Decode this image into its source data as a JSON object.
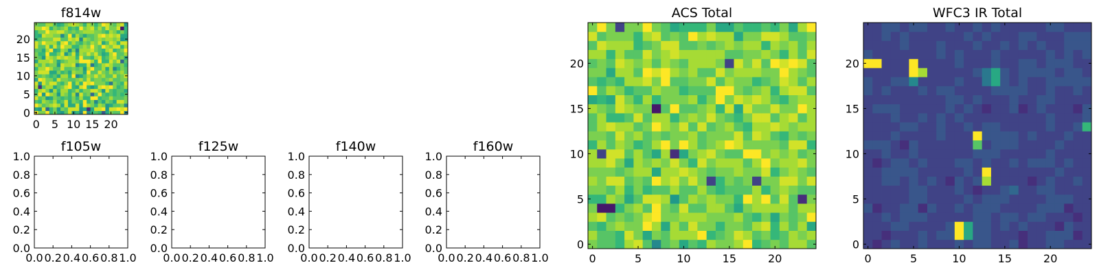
{
  "chart_data": [
    {
      "type": "heatmap",
      "title": "f814w",
      "xlabel": "",
      "ylabel": "",
      "xlim": [
        -0.5,
        24.5
      ],
      "ylim": [
        -0.5,
        24.5
      ],
      "x_ticks": [
        0,
        5,
        10,
        15,
        20
      ],
      "y_ticks": [
        0,
        5,
        10,
        15,
        20
      ],
      "grid_size": 25,
      "colormap": "viridis",
      "value_range": [
        0,
        1
      ],
      "grid": false,
      "values": [
        "PMMPKMJILOIKHPHKLKEJMLLPH",
        "JIOFKMIMLOOOIJCJOOPIOOPOP",
        "PNLMNONJOJJOJPNMKNMIJLLMH",
        "LKNMLNKLOJMLKPKMHLJMLJOOM",
        "OLMIJMLKLKMKNKKPPKLLNLLLM",
        "LPIPNMINMKNHOLMFLPLKLKLKL",
        "KNOMINKNNKLNKMMOOMIOLKLLJ",
        "NCLNNJLMOPKJOPKIKOPOPMKLN",
        "OIOMOOLKMPKNKPOPMMMKGMLKO",
        "JPOMMKOMMLLMNLOLMMLMNLLMM",
        "MLMLKLJNNKPHJLNMOMNLLOLMO",
        "MOOOJJMKLJNMMJPLLOMLNLMNL",
        "KNNPNLLOLLMLMINPLLNJNHKML",
        "NLNLMMIONNOHKKOGKLNONLLMK",
        "JNNNOMJLMNNMPPPNKPKKOMOFL",
        "MLIONMONONNKPLLKNOKLNOLMJ",
        "MKKPKKMOILOJNMOMOLJKNPLLN",
        "LLJNPJKNMIMHNNNOMLKNOKLMP",
        "OLLOKOLPNNKKMNMPMLPNMOOKN",
        "OMPNNNKOPLNLKMLNMOJLONKOO",
        "KLMMMOOLLONOHNMLMNMNNMNIJ",
        "KJONNMMHLPJNLJLLMOPNONOJJ",
        "KMMPNNOOMLMLMNNNMMLKNMKMK",
        "NNPOKMLMNKLKPMNOLNLOMMOBK",
        "MLLNNLJKMNONMKNMKMPOMLNOI"
      ]
    },
    {
      "type": "scatter",
      "title": "f105w",
      "xlabel": "",
      "ylabel": "",
      "xlim": [
        0,
        1
      ],
      "ylim": [
        0,
        1
      ],
      "x_ticks": [
        0.0,
        0.2,
        0.4,
        0.6,
        0.8,
        1.0
      ],
      "y_ticks": [
        0.0,
        0.2,
        0.4,
        0.6,
        0.8,
        1.0
      ],
      "series": []
    },
    {
      "type": "scatter",
      "title": "f125w",
      "xlabel": "",
      "ylabel": "",
      "xlim": [
        0,
        1
      ],
      "ylim": [
        0,
        1
      ],
      "x_ticks": [
        0.0,
        0.2,
        0.4,
        0.6,
        0.8,
        1.0
      ],
      "y_ticks": [
        0.0,
        0.2,
        0.4,
        0.6,
        0.8,
        1.0
      ],
      "series": []
    },
    {
      "type": "scatter",
      "title": "f140w",
      "xlabel": "",
      "ylabel": "",
      "xlim": [
        0,
        1
      ],
      "ylim": [
        0,
        1
      ],
      "x_ticks": [
        0.0,
        0.2,
        0.4,
        0.6,
        0.8,
        1.0
      ],
      "y_ticks": [
        0.0,
        0.2,
        0.4,
        0.6,
        0.8,
        1.0
      ],
      "series": []
    },
    {
      "type": "scatter",
      "title": "f160w",
      "xlabel": "",
      "ylabel": "",
      "xlim": [
        0,
        1
      ],
      "ylim": [
        0,
        1
      ],
      "x_ticks": [
        0.0,
        0.2,
        0.4,
        0.6,
        0.8,
        1.0
      ],
      "y_ticks": [
        0.0,
        0.2,
        0.4,
        0.6,
        0.8,
        1.0
      ],
      "series": []
    },
    {
      "type": "heatmap",
      "title": "ACS Total",
      "xlabel": "",
      "ylabel": "",
      "xlim": [
        -0.5,
        24.5
      ],
      "ylim": [
        -0.5,
        24.5
      ],
      "x_ticks": [
        0,
        5,
        10,
        15,
        20
      ],
      "y_ticks": [
        0,
        5,
        10,
        15,
        20
      ],
      "grid_size": 25,
      "colormap": "viridis",
      "value_range": [
        0,
        1
      ],
      "grid": false,
      "values": [
        "MLLKNOLHLMJLKNMMNPKLMLNNL",
        "NLLKOMJMLNNNPKLMONLMKLNMN",
        "LKMNMMPNJNLOMMKMMLNOKNLNJ",
        "NOLMLMOPMMNNNMMMNLKMJMLMP",
        "MBBKMNLPMLOLLNNLJMNNNNLNN",
        "KKNMJLOONILNMNMMKPNPLOLCM",
        "MMLNKMKLLNLLNLKLLLNKMNMLL",
        "NMOOLMLPNOMOMDKMLMDMMOOMO",
        "MMMLMNNJNNONMLMMNMMOKMNML",
        "NNOMJNMNMOMKOMNNNLNPMNNOM",
        "NDOOLNLJNCJMNOMLLPPMNMNLM",
        "KNLNMKLNPMPNLMNPOMMMMLOOK",
        "MMLOMNLMLMMNLMMMOLONLKMLM",
        "LNONNLMPNMOLOLMNLKNNONMNN",
        "LNKKLOLNNKMNMOMLKMOOLNOLN",
        "NMLONMMBLPLLMNKOJOMMOMMPN",
        "JKJOMKNKMMMNKMPMONONLKMNN",
        "PLNMKLLNMMKLLLPPMLMNKNOOL",
        "LKLKNNOMPLLMMOLNMMKLMONLN",
        "MMJNNLPOPNMNLLOMNNNMMPNML",
        "LMLONMNLNMLNNNMDOMOLPOPOL",
        "NNKNLLOMNONNNNNLLMMNMKNLO",
        "LONNNKLMOOLLMLMNMNNKNMNLN",
        "OLMMMKNOLMLPNONNJMMOONLLM",
        "MPMDMMPMLJKKKMJJLKKLKMJNP"
      ]
    },
    {
      "type": "heatmap",
      "title": "WFC3 IR Total",
      "xlabel": "",
      "ylabel": "",
      "xlim": [
        -0.5,
        24.5
      ],
      "ylim": [
        -0.5,
        24.5
      ],
      "x_ticks": [
        0,
        5,
        10,
        15,
        20
      ],
      "y_ticks": [
        0,
        5,
        10,
        15,
        20
      ],
      "grid_size": 25,
      "colormap": "viridis",
      "value_range": [
        0,
        1
      ],
      "grid": false,
      "values": [
        "DCDEDDEDDDEDEEDDECDDEEDDD",
        "DDCDDDEDEEPJEEDDDCDDEEECD",
        "DDDEEDDDDEPJEEDEDEDDDCEDD",
        "DDEDEEEDDDDDEEDEEDEEDDDCD",
        "ECDDEECEDDEDEEEDDDDEEECDD",
        "DDDDDEEDDDDEDEEEDDDDEEEDD",
        "DDDDDEEDDDEDCDDEFDDEEDDDD",
        "DDEEDEDEDCEDENDDDDCDEDDED",
        "DDEEEEDDDDDEDPDDDDDDDEDDD",
        "DCDEEDEDDDEEDEDDEDEEEDEDD",
        "DDEDDEDDDDDDEEEDDDDDEDDDD",
        "EEEDCEDDDDDDLDEEEDDDDEDDD",
        "DDDEDDDDEDDDPEEEEDEDDDEDD",
        "DDDDEEDDEDDEDEEDDDDDEDDEK",
        "DDDEDDEDEDEDDDDDDDDDEDDDE",
        "DEEEDDDDDEDEDCDDECDEDDDCE",
        "DDDDDDDDDEEDEDDDEDDEEDDDD",
        "EDEDDDEDEEDDDDEEEEDDEDDED",
        "EDDEEHDDDDEDDGJEDEDDEEEEE",
        "DDDDDPNDDDDDEGJEDEEEEDEED",
        "PPDDDPDDDDEDDDEDDEEDEEEDD",
        "EDDDDDDDEDEDDDEDDDDDEDEDE",
        "DDDDEDDDEDDDEDDEDEDEDDEEE",
        "DDEDEDDDDDDEDEDDDEEDDDEEE",
        "DDEEDEEDDEDDEDEDDDDDEEDDD"
      ]
    }
  ]
}
